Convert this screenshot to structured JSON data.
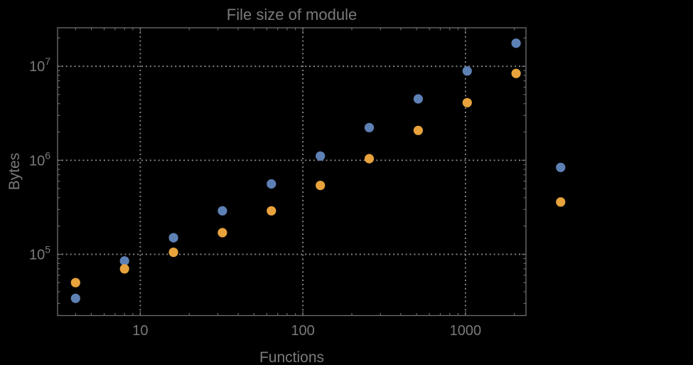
{
  "chart_data": {
    "type": "scatter",
    "title": "File size of module",
    "xlabel": "Functions",
    "ylabel": "Bytes",
    "x_scale": "log",
    "y_scale": "log",
    "grid": true,
    "grid_style": "dotted",
    "legend": "none",
    "xlim": [
      3.1,
      2355
    ],
    "ylim": [
      22300,
      25700000
    ],
    "x_major_ticks": [
      {
        "v": 10,
        "label": "10"
      },
      {
        "v": 100,
        "label": "100"
      },
      {
        "v": 1000,
        "label": "1000"
      }
    ],
    "y_major_ticks": [
      {
        "v": 100000,
        "base": "10",
        "exp": "5"
      },
      {
        "v": 1000000,
        "base": "10",
        "exp": "6"
      },
      {
        "v": 10000000,
        "base": "10",
        "exp": "7"
      }
    ],
    "x": [
      4,
      8,
      16,
      32,
      64,
      128,
      256,
      512,
      1024,
      2048,
      3850
    ],
    "series": [
      {
        "name": "blue",
        "color": "#5E81B5",
        "values": [
          34000,
          85000,
          150000,
          290000,
          560000,
          1110000,
          2230000,
          4500000,
          8900000,
          17600000,
          840000
        ]
      },
      {
        "name": "orange",
        "color": "#E8A33C",
        "values": [
          50000,
          70000,
          105000,
          170000,
          290000,
          540000,
          1040000,
          2080000,
          4100000,
          8400000,
          360000
        ]
      }
    ],
    "marker_diameter_px": 13.2,
    "clipping": false,
    "colors": {
      "background": "#000000",
      "frame": "#6e6e6e",
      "grid": "#878787",
      "text": "#7a7a7a"
    }
  }
}
